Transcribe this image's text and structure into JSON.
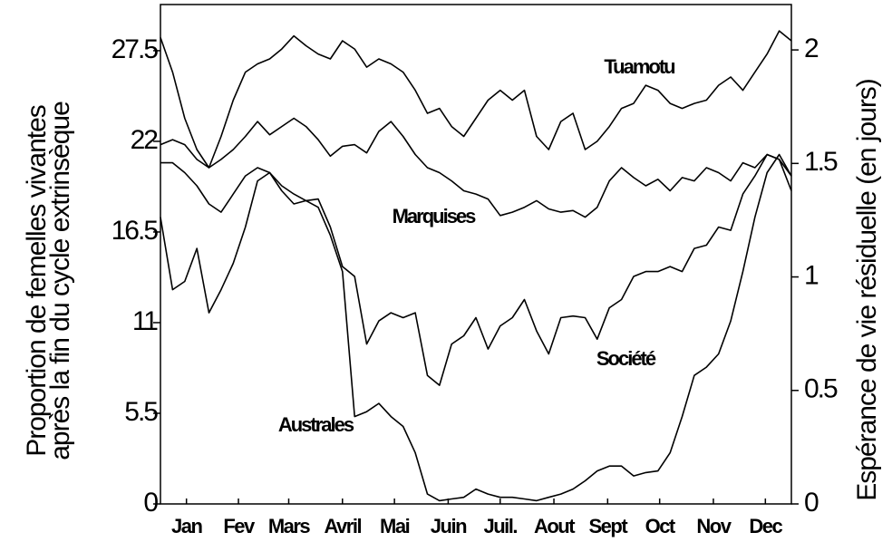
{
  "chart_data": {
    "type": "line",
    "ylabel": "Proportion de femelles vivantes",
    "ylabel2": "après la fin du cycle extrinsèque",
    "y2label": "Espérance de vie résiduelle (en jours)",
    "xlim": [
      0,
      364
    ],
    "xticks": [
      {
        "value": 15,
        "label": "Jan"
      },
      {
        "value": 45,
        "label": "Fev"
      },
      {
        "value": 74,
        "label": "Mars"
      },
      {
        "value": 105,
        "label": "Avril"
      },
      {
        "value": 135,
        "label": "Mai"
      },
      {
        "value": 166,
        "label": "Juin"
      },
      {
        "value": 196,
        "label": "Juil."
      },
      {
        "value": 227,
        "label": "Aout"
      },
      {
        "value": 258,
        "label": "Sept"
      },
      {
        "value": 288,
        "label": "Oct"
      },
      {
        "value": 319,
        "label": "Nov"
      },
      {
        "value": 349,
        "label": "Dec"
      }
    ],
    "ylim": [
      0,
      30.3
    ],
    "yticks": [
      0,
      5.5,
      11,
      16.5,
      22,
      27.5
    ],
    "y2lim": [
      0,
      2.2
    ],
    "y2ticks": [
      0,
      0.5,
      1,
      1.5,
      2
    ],
    "x": [
      0,
      7,
      14,
      21,
      28,
      35,
      42,
      49,
      56,
      63,
      70,
      77,
      84,
      91,
      98,
      105,
      112,
      119,
      126,
      133,
      140,
      147,
      154,
      161,
      168,
      175,
      182,
      189,
      196,
      203,
      210,
      217,
      224,
      231,
      238,
      245,
      252,
      259,
      266,
      273,
      280,
      287,
      294,
      301,
      308,
      315,
      322,
      329,
      336,
      343,
      350,
      357,
      364
    ],
    "series": [
      {
        "name": "Tuamotu",
        "color": "#000000",
        "values": [
          28.3,
          26.2,
          23.4,
          21.5,
          20.4,
          22.3,
          24.5,
          26.2,
          26.7,
          27.0,
          27.6,
          28.4,
          27.8,
          27.3,
          27.0,
          28.1,
          27.6,
          26.5,
          27.0,
          26.7,
          26.2,
          25.1,
          23.7,
          24.0,
          22.9,
          22.3,
          23.4,
          24.5,
          25.1,
          24.5,
          25.1,
          22.3,
          21.5,
          23.2,
          23.7,
          21.5,
          22.0,
          22.9,
          24.0,
          24.3,
          25.4,
          25.1,
          24.3,
          24.0,
          24.3,
          24.5,
          25.4,
          25.9,
          25.1,
          26.2,
          27.3,
          28.7,
          28.1
        ]
      },
      {
        "name": "Marquises",
        "color": "#000000",
        "values": [
          21.8,
          22.1,
          21.8,
          20.9,
          20.4,
          20.9,
          21.5,
          22.3,
          23.2,
          22.4,
          22.9,
          23.4,
          22.9,
          22.1,
          21.1,
          21.7,
          21.8,
          21.3,
          22.6,
          23.2,
          22.3,
          21.2,
          20.4,
          20.1,
          19.6,
          19.0,
          18.8,
          18.5,
          17.5,
          17.7,
          18.0,
          18.4,
          17.9,
          17.7,
          17.8,
          17.4,
          18.0,
          19.6,
          20.4,
          19.8,
          19.3,
          19.7,
          19.0,
          19.8,
          19.6,
          20.4,
          20.1,
          19.6,
          20.7,
          20.4,
          21.2,
          20.9,
          19.9
        ]
      },
      {
        "name": "Société",
        "color": "#000000",
        "values": [
          17.4,
          13.0,
          13.5,
          15.5,
          11.6,
          13.0,
          14.6,
          16.8,
          19.6,
          20.1,
          19.0,
          18.2,
          18.4,
          18.5,
          16.8,
          14.4,
          13.8,
          9.7,
          11.1,
          11.6,
          11.3,
          11.6,
          7.8,
          7.2,
          9.7,
          10.2,
          11.3,
          9.4,
          10.8,
          11.3,
          12.4,
          10.5,
          9.1,
          11.3,
          11.4,
          11.3,
          10.0,
          11.9,
          12.4,
          13.8,
          14.1,
          14.1,
          14.4,
          14.1,
          15.5,
          15.7,
          16.8,
          16.6,
          18.8,
          19.9,
          21.2,
          20.9,
          19.0
        ]
      },
      {
        "name": "Australes",
        "color": "#000000",
        "values": [
          20.7,
          20.7,
          20.1,
          19.3,
          18.2,
          17.7,
          18.8,
          19.9,
          20.4,
          20.1,
          19.3,
          18.8,
          18.4,
          18.0,
          16.3,
          14.1,
          5.3,
          5.6,
          6.1,
          5.3,
          4.7,
          3.1,
          0.6,
          0.2,
          0.3,
          0.4,
          0.9,
          0.6,
          0.4,
          0.4,
          0.3,
          0.2,
          0.4,
          0.6,
          0.9,
          1.4,
          2.0,
          2.3,
          2.3,
          1.7,
          1.9,
          2.0,
          3.1,
          5.3,
          7.8,
          8.3,
          9.1,
          11.1,
          14.1,
          17.4,
          20.1,
          21.2,
          19.9
        ]
      }
    ]
  }
}
